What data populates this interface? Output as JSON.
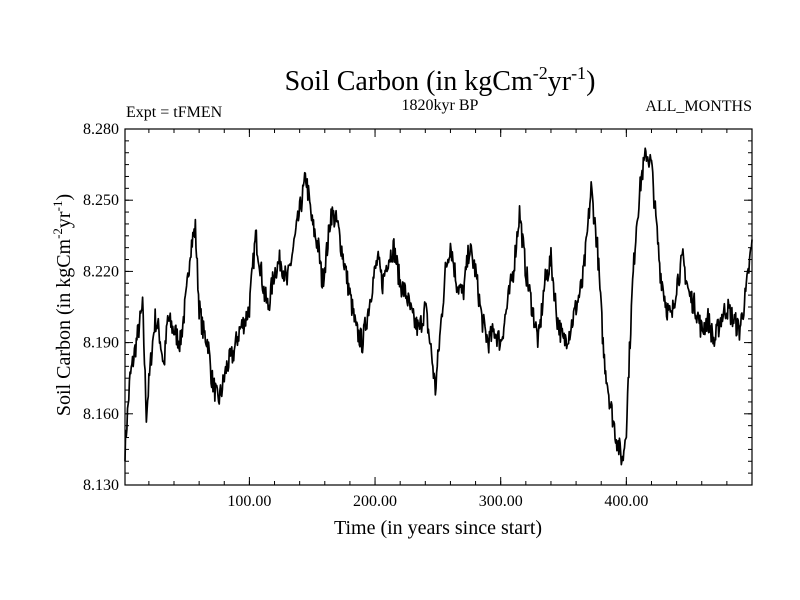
{
  "header": {
    "title_main": "Soil Carbon (in kgCm",
    "title_sup1": "-2",
    "title_mid": "yr",
    "title_sup2": "-1",
    "title_end": ")",
    "subtitle": "1820kyr BP",
    "left_label": "Expt = tFMEN",
    "right_label": "ALL_MONTHS"
  },
  "axes": {
    "ylabel_main": "Soil Carbon (in kgCm",
    "ylabel_sup1": "-2",
    "ylabel_mid": "yr",
    "ylabel_sup2": "-1",
    "ylabel_end": ")",
    "xlabel": "Time (in years since start)"
  },
  "chart_data": {
    "type": "line",
    "title": "Soil Carbon (in kgCm-2yr-1)",
    "subtitle": "1820kyr BP",
    "xlabel": "Time (in years since start)",
    "ylabel": "Soil Carbon (in kgCm-2yr-1)",
    "xlim": [
      1,
      500
    ],
    "ylim": [
      8.13,
      8.28
    ],
    "x_ticks": [
      100,
      200,
      300,
      400
    ],
    "x_tick_labels": [
      "100.00",
      "200.00",
      "300.00",
      "400.00"
    ],
    "y_ticks": [
      8.13,
      8.16,
      8.19,
      8.22,
      8.25,
      8.28
    ],
    "y_tick_labels": [
      "8.130",
      "8.160",
      "8.190",
      "8.220",
      "8.250",
      "8.280"
    ],
    "series": [
      {
        "name": "Soil Carbon",
        "x": [
          1,
          5,
          10,
          15,
          18,
          22,
          25,
          28,
          32,
          35,
          40,
          45,
          50,
          53,
          57,
          60,
          63,
          67,
          70,
          75,
          78,
          82,
          87,
          92,
          97,
          100,
          105,
          108,
          112,
          115,
          120,
          125,
          130,
          135,
          140,
          145,
          150,
          155,
          158,
          162,
          165,
          170,
          175,
          180,
          185,
          190,
          195,
          198,
          202,
          206,
          210,
          215,
          220,
          225,
          230,
          235,
          240,
          245,
          248,
          252,
          256,
          260,
          265,
          270,
          275,
          280,
          285,
          290,
          295,
          300,
          305,
          310,
          315,
          320,
          325,
          330,
          335,
          340,
          345,
          350,
          355,
          360,
          365,
          368,
          372,
          377,
          382,
          387,
          392,
          397,
          400,
          402,
          405,
          408,
          412,
          416,
          420,
          423,
          427,
          432,
          436,
          440,
          445,
          450,
          455,
          460,
          465,
          470,
          475,
          480,
          485,
          490,
          495,
          500
        ],
        "values": [
          8.145,
          8.175,
          8.19,
          8.205,
          8.16,
          8.185,
          8.2,
          8.195,
          8.18,
          8.2,
          8.195,
          8.19,
          8.21,
          8.23,
          8.238,
          8.205,
          8.195,
          8.19,
          8.175,
          8.165,
          8.17,
          8.18,
          8.185,
          8.195,
          8.2,
          8.205,
          8.235,
          8.225,
          8.21,
          8.205,
          8.22,
          8.225,
          8.215,
          8.23,
          8.245,
          8.26,
          8.24,
          8.23,
          8.215,
          8.23,
          8.245,
          8.24,
          8.225,
          8.21,
          8.195,
          8.19,
          8.205,
          8.215,
          8.225,
          8.215,
          8.225,
          8.23,
          8.215,
          8.21,
          8.2,
          8.195,
          8.205,
          8.185,
          8.17,
          8.195,
          8.22,
          8.232,
          8.215,
          8.21,
          8.23,
          8.22,
          8.2,
          8.19,
          8.195,
          8.19,
          8.205,
          8.22,
          8.245,
          8.22,
          8.205,
          8.19,
          8.215,
          8.225,
          8.2,
          8.19,
          8.195,
          8.205,
          8.215,
          8.23,
          8.255,
          8.23,
          8.185,
          8.165,
          8.15,
          8.14,
          8.155,
          8.18,
          8.215,
          8.24,
          8.26,
          8.27,
          8.265,
          8.245,
          8.22,
          8.205,
          8.2,
          8.215,
          8.225,
          8.21,
          8.205,
          8.195,
          8.2,
          8.19,
          8.2,
          8.205,
          8.2,
          8.195,
          8.21,
          8.232
        ]
      }
    ]
  }
}
